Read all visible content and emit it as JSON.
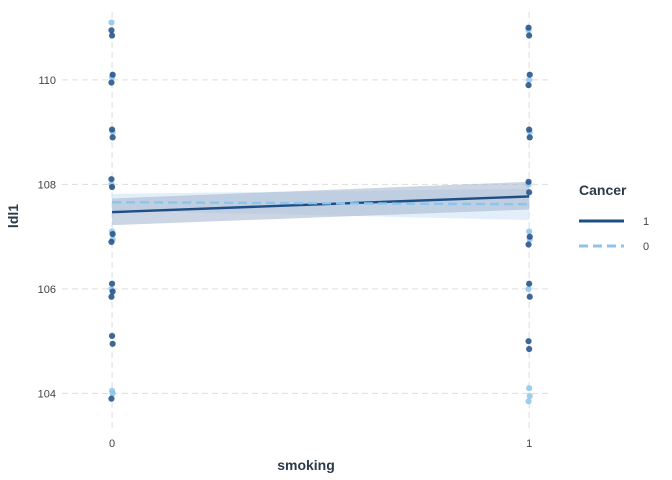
{
  "chart_data": {
    "type": "scatter",
    "title": "",
    "xlabel": "smoking",
    "ylabel": "ldl1",
    "x_ticks": [
      "0",
      "1"
    ],
    "y_ticks": [
      "104",
      "106",
      "108",
      "110"
    ],
    "xlim": [
      -0.12,
      1.05
    ],
    "ylim": [
      103.3,
      111.3
    ],
    "grid": true,
    "legend": {
      "title": "Cancer",
      "position": "right"
    },
    "colors": {
      "cancer_1": "#1f4e84",
      "cancer_0": "#8cc4ec",
      "ribbon_1": "#a9b9d0",
      "ribbon_0": "#cfe3f5",
      "grid": "#dddddd"
    },
    "series": [
      {
        "name": "1",
        "line_style": "solid",
        "points": {
          "0": [
            110.95,
            110.85,
            110.1,
            109.95,
            109.05,
            108.9,
            108.1,
            107.95,
            107.05,
            106.9,
            106.1,
            105.95,
            105.85,
            105.1,
            104.95,
            103.9
          ],
          "1": [
            111.0,
            110.85,
            110.1,
            109.9,
            109.05,
            108.9,
            108.05,
            107.85,
            107.0,
            106.85,
            106.1,
            105.85,
            105.0,
            104.85
          ]
        },
        "fit": {
          "x": [
            0,
            1
          ],
          "y": [
            107.47,
            107.77
          ]
        },
        "ci": {
          "lower": [
            107.22,
            107.52
          ],
          "upper": [
            107.73,
            108.05
          ]
        }
      },
      {
        "name": "0",
        "line_style": "dashed",
        "points": {
          "0": [
            111.1,
            110.05,
            109.0,
            108.0,
            107.1,
            106.95,
            106.0,
            104.05,
            104.0
          ],
          "1": [
            110.95,
            110.0,
            109.0,
            108.0,
            107.1,
            106.95,
            106.0,
            104.1,
            103.95,
            103.85
          ]
        },
        "fit": {
          "x": [
            0,
            1
          ],
          "y": [
            107.66,
            107.62
          ]
        },
        "ci": {
          "lower": [
            107.5,
            107.32
          ],
          "upper": [
            107.82,
            107.92
          ]
        }
      }
    ]
  }
}
